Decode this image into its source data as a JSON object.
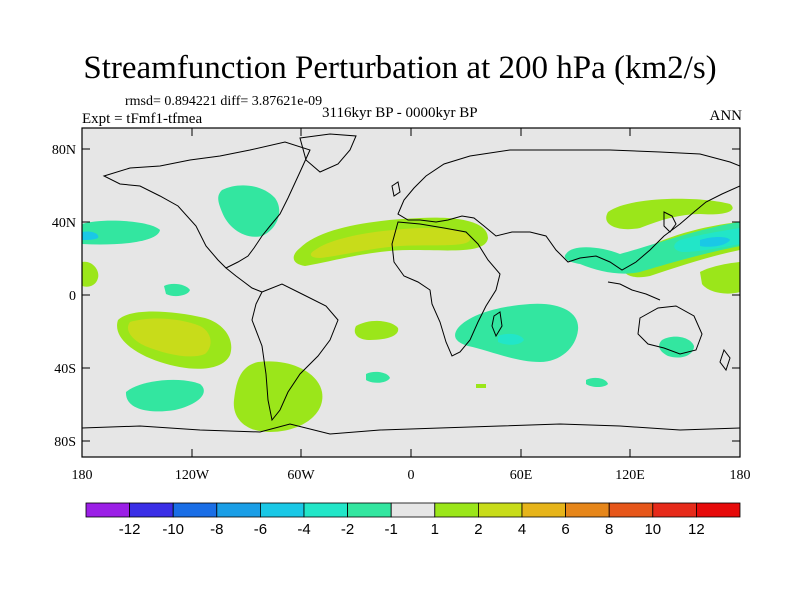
{
  "map": {
    "title": "Streamfunction Perturbation at 200 hPa (km2/s)",
    "stats_line": "rmsd= 0.894221  diff= 3.87621e-09",
    "experiment": "Expt = tFmf1-tfmea",
    "period": "3116kyr BP - 0000kyr BP",
    "season": "ANN",
    "lat_ticks": [
      "80N",
      "40N",
      "0",
      "40S",
      "80S"
    ],
    "lon_ticks": [
      "180",
      "120W",
      "60W",
      "0",
      "60E",
      "120E",
      "180"
    ],
    "background_color": "#e6e6e6"
  },
  "colorbar": {
    "labels": [
      "-12",
      "-10",
      "-8",
      "-6",
      "-4",
      "-2",
      "-1",
      "1",
      "2",
      "4",
      "6",
      "8",
      "10",
      "12"
    ],
    "colors": [
      "#9b1fe6",
      "#3a2ee6",
      "#1a6ee6",
      "#1a9ee6",
      "#1ac8e6",
      "#22e6c8",
      "#33e6a0",
      "#e6e6e6",
      "#9be61a",
      "#c8dc1a",
      "#e6b41a",
      "#e6861a",
      "#e6561a",
      "#e62a1a",
      "#e60a0a"
    ]
  }
}
